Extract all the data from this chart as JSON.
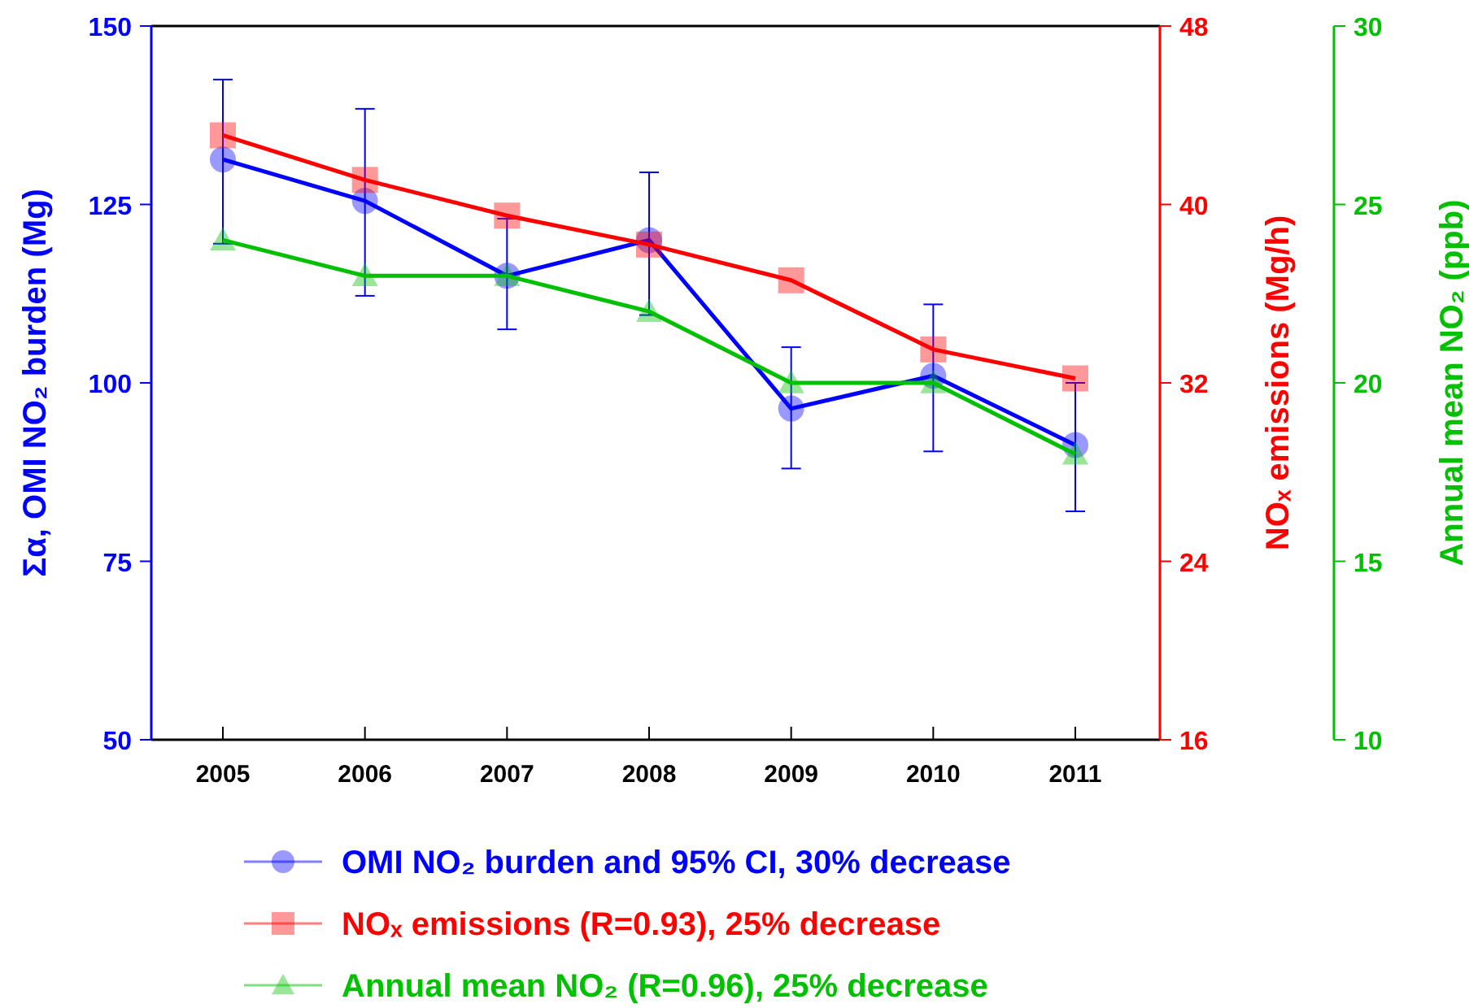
{
  "chart_data": {
    "type": "line",
    "categories": [
      "2005",
      "2006",
      "2007",
      "2008",
      "2009",
      "2010",
      "2011"
    ],
    "ylabel": "Σα, OMI NO₂ burden (Mg)",
    "y2label": "NOₓ emissions (Mg/h)",
    "y3label": "Annual mean NO₂ (ppb)",
    "ylim": [
      50,
      150
    ],
    "yticks": [
      50,
      75,
      100,
      125,
      150
    ],
    "y2lim": [
      16,
      48
    ],
    "y2ticks": [
      16,
      24,
      32,
      40,
      48
    ],
    "y3lim": [
      10,
      30
    ],
    "y3ticks": [
      10,
      15,
      20,
      25,
      30
    ],
    "legend": "bottom",
    "grid": false,
    "series": [
      {
        "name": "OMI NO₂ burden and 95% CI, 30% decrease",
        "color": "#0000ff",
        "marker": "circle",
        "values": [
          131.3,
          125.5,
          115,
          120,
          96.4,
          101,
          91.3
        ],
        "errors": [
          [
            119.5,
            142.5
          ],
          [
            112.2,
            138.4
          ],
          [
            107.5,
            123
          ],
          [
            109.5,
            129.5
          ],
          [
            88,
            105
          ],
          [
            90.4,
            111
          ],
          [
            82,
            100
          ]
        ]
      },
      {
        "name": "NOₓ emissions (R=0.93), 25% decrease",
        "color": "#ff0000",
        "marker": "square",
        "axis": "y2",
        "values": [
          43.1,
          41.1,
          39.5,
          38.2,
          36.6,
          33.5,
          32.2
        ]
      },
      {
        "name": "Annual mean NO₂ (R=0.96), 25% decrease",
        "color": "#00c000",
        "marker": "triangle",
        "axis": "y3",
        "values": [
          24,
          23,
          23,
          22,
          20,
          20,
          18
        ]
      }
    ]
  }
}
